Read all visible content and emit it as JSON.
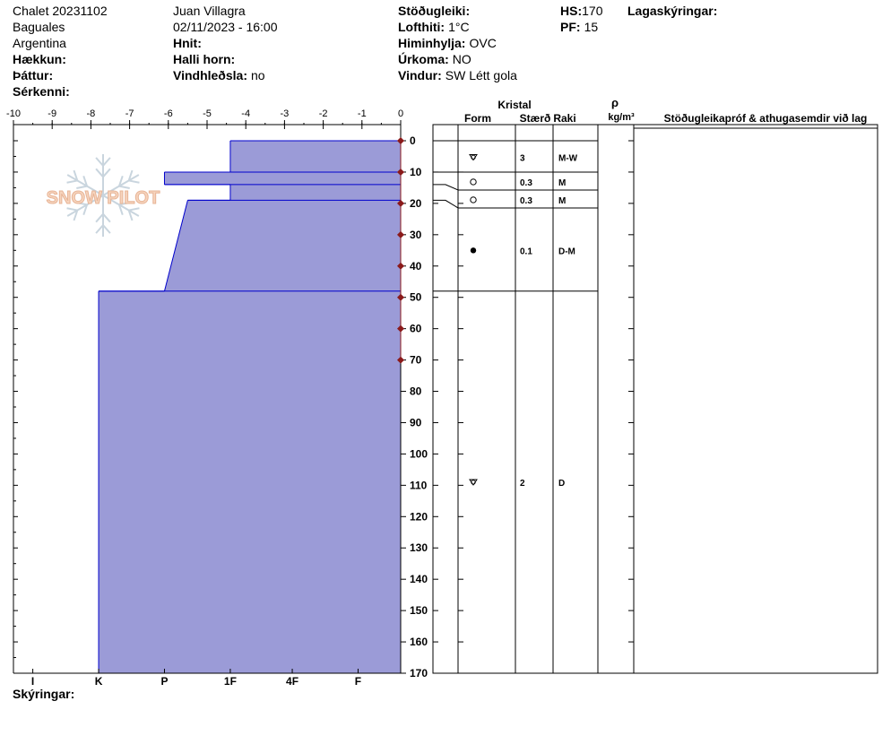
{
  "header": {
    "col1": [
      "Chalet 20231102",
      "Baguales",
      "Argentina"
    ],
    "hekkun_label": "Hækkun:",
    "thattur_label": "Þáttur:",
    "serkenni_label": "Sérkenni:",
    "observer": "Juan Villagra",
    "datetime": "02/11/2023 - 16:00",
    "hnit_label": "Hnit:",
    "halli_label": "Halli horn:",
    "vindhledsla_label": "Vindhleðsla:",
    "vindhledsla_value": "no",
    "stodugleiki_label": "Stöðugleiki:",
    "lofthiti_label": "Lofthiti:",
    "lofthiti_value": "1°C",
    "himinhylja_label": "Himinhylja:",
    "himinhylja_value": "OVC",
    "urkoma_label": "Úrkoma:",
    "urkoma_value": "NO",
    "vindur_label": "Vindur:",
    "vindur_value": "SW Létt gola",
    "hs_label": "HS:",
    "hs_value": "170",
    "pf_label": "PF:",
    "pf_value": "15",
    "lagaskyringar_label": "Lagaskýringar:"
  },
  "legend_label": "Skýringar:",
  "watermark": "SNOW PILOT",
  "colors": {
    "fill": "#9b9bd7",
    "edge": "#0000cc",
    "temp_marker": "#8b1a1a"
  },
  "chart_data": {
    "type": "area",
    "title": "",
    "top_axis": {
      "min": -10,
      "max": 0,
      "ticks": [
        "-10",
        "-9",
        "-8",
        "-7",
        "-6",
        "-5",
        "-4",
        "-3",
        "-2",
        "-1",
        "0"
      ]
    },
    "depth_axis": {
      "min": 0,
      "max": 170,
      "step": 10,
      "ticks": [
        "0",
        "10",
        "20",
        "30",
        "40",
        "50",
        "60",
        "70",
        "80",
        "90",
        "100",
        "110",
        "120",
        "130",
        "140",
        "150",
        "160",
        "170"
      ]
    },
    "hardness_axis": {
      "labels": [
        "I",
        "K",
        "P",
        "1F",
        "4F",
        "F"
      ],
      "values": [
        -9.5,
        -7.8,
        -6.1,
        -4.4,
        -2.8,
        -1.1
      ]
    },
    "hardness_profile": [
      {
        "top": 0,
        "bottom": 10,
        "value_top": -4.4,
        "value_bottom": -4.4
      },
      {
        "top": 10,
        "bottom": 14,
        "value_top": -6.1,
        "value_bottom": -6.1
      },
      {
        "top": 14,
        "bottom": 19,
        "value_top": -4.4,
        "value_bottom": -4.4
      },
      {
        "top": 19,
        "bottom": 48,
        "value_top": -5.5,
        "value_bottom": -6.1
      },
      {
        "top": 48,
        "bottom": 170,
        "value_top": -7.8,
        "value_bottom": -7.8
      }
    ],
    "temperature": {
      "depths": [
        0,
        10,
        20,
        30,
        40,
        50,
        60,
        70
      ],
      "values": [
        0,
        0,
        0,
        0,
        0,
        0,
        0,
        0
      ]
    }
  },
  "table": {
    "kristal_label": "Kristal",
    "form_label": "Form",
    "staerd_label": "Stærð",
    "raki_label": "Raki",
    "rho_label": "ρ",
    "density_unit": "kg/m³",
    "comments_label": "Stöðugleikapróf & athugasemdir við lag",
    "layers": [
      {
        "top": 0,
        "bottom": 10,
        "form": "faceted",
        "size": "3",
        "wet": "M-W"
      },
      {
        "top": 10,
        "bottom": 14,
        "form": "round",
        "size": "0.3",
        "wet": "M"
      },
      {
        "top": 14,
        "bottom": 19,
        "form": "round",
        "size": "0.3",
        "wet": "M"
      },
      {
        "top": 19,
        "bottom": 48,
        "form": "ice",
        "size": "0.1",
        "wet": "D-M"
      },
      {
        "top": 48,
        "bottom": 170,
        "form": "faceted",
        "size": "2",
        "wet": "D"
      }
    ]
  }
}
